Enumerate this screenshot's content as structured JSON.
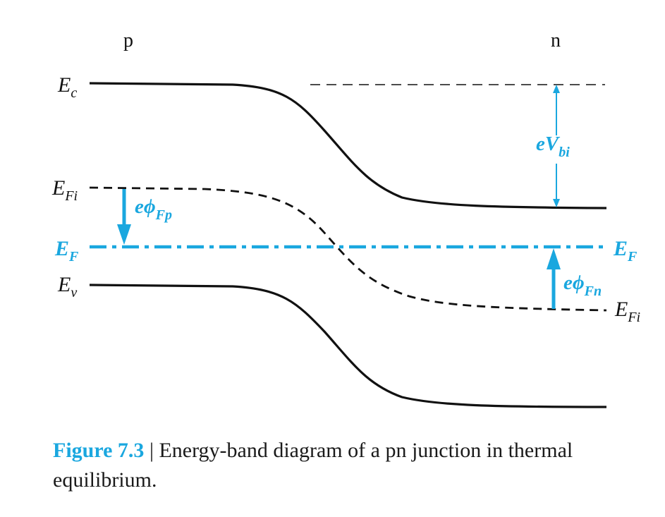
{
  "regions": {
    "left": "p",
    "right": "n"
  },
  "levels": {
    "ec": {
      "main": "E",
      "sub": "c"
    },
    "efi_left": {
      "main": "E",
      "sub": "Fi"
    },
    "ef_left": {
      "main": "E",
      "sub": "F"
    },
    "ev": {
      "main": "E",
      "sub": "v"
    },
    "ef_right": {
      "main": "E",
      "sub": "F"
    },
    "efi_right": {
      "main": "E",
      "sub": "Fi"
    }
  },
  "annotations": {
    "vbi": {
      "main": "eV",
      "sub": "bi"
    },
    "phi_fp": {
      "main": "eϕ",
      "sub": "Fp"
    },
    "phi_fn": {
      "main": "eϕ",
      "sub": "Fn"
    }
  },
  "caption": {
    "number": "Figure 7.3",
    "separator": " | ",
    "text": "Energy-band diagram of a pn junction in thermal equilibrium."
  },
  "colors": {
    "accent": "#1aa7df",
    "line": "#111111"
  }
}
